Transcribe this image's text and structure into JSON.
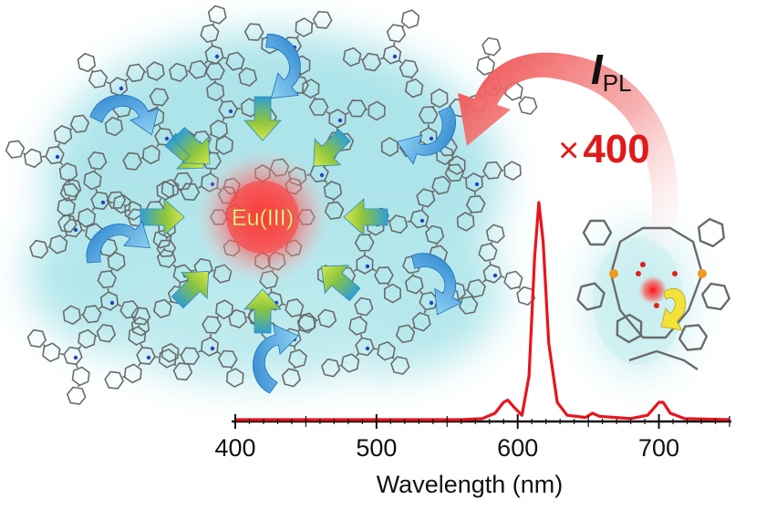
{
  "center_label": "Eu(III)",
  "intensity_label": {
    "main": "I",
    "subscript": "PL"
  },
  "enhancement": {
    "symbol": "×",
    "value": "400"
  },
  "colors": {
    "glow": "#6fd0d8",
    "eu_red": "#e63a3a",
    "arrow_blue": "#4aa3dc",
    "arrow_green": "#8bc43f",
    "spectrum_red": "#e8141e",
    "big_arrow": "#f06a6a",
    "enhancement_red": "#e01a1a",
    "yellow_arrow": "#f2e23a"
  },
  "chart_data": {
    "type": "line",
    "xlabel": "Wavelength (nm)",
    "x_ticks": [
      400,
      500,
      600,
      700
    ],
    "xlim": [
      400,
      750
    ],
    "series": [
      {
        "points": [
          [
            400,
            0.0
          ],
          [
            560,
            0.0
          ],
          [
            575,
            0.005
          ],
          [
            584,
            0.03
          ],
          [
            590,
            0.08
          ],
          [
            593,
            0.09
          ],
          [
            597,
            0.06
          ],
          [
            603,
            0.02
          ],
          [
            608,
            0.2
          ],
          [
            612,
            0.75
          ],
          [
            615,
            1.0
          ],
          [
            618,
            0.82
          ],
          [
            622,
            0.35
          ],
          [
            628,
            0.08
          ],
          [
            635,
            0.02
          ],
          [
            648,
            0.01
          ],
          [
            653,
            0.03
          ],
          [
            658,
            0.015
          ],
          [
            680,
            0.005
          ],
          [
            692,
            0.02
          ],
          [
            700,
            0.08
          ],
          [
            703,
            0.08
          ],
          [
            708,
            0.03
          ],
          [
            718,
            0.005
          ],
          [
            750,
            0.0
          ]
        ]
      }
    ]
  }
}
